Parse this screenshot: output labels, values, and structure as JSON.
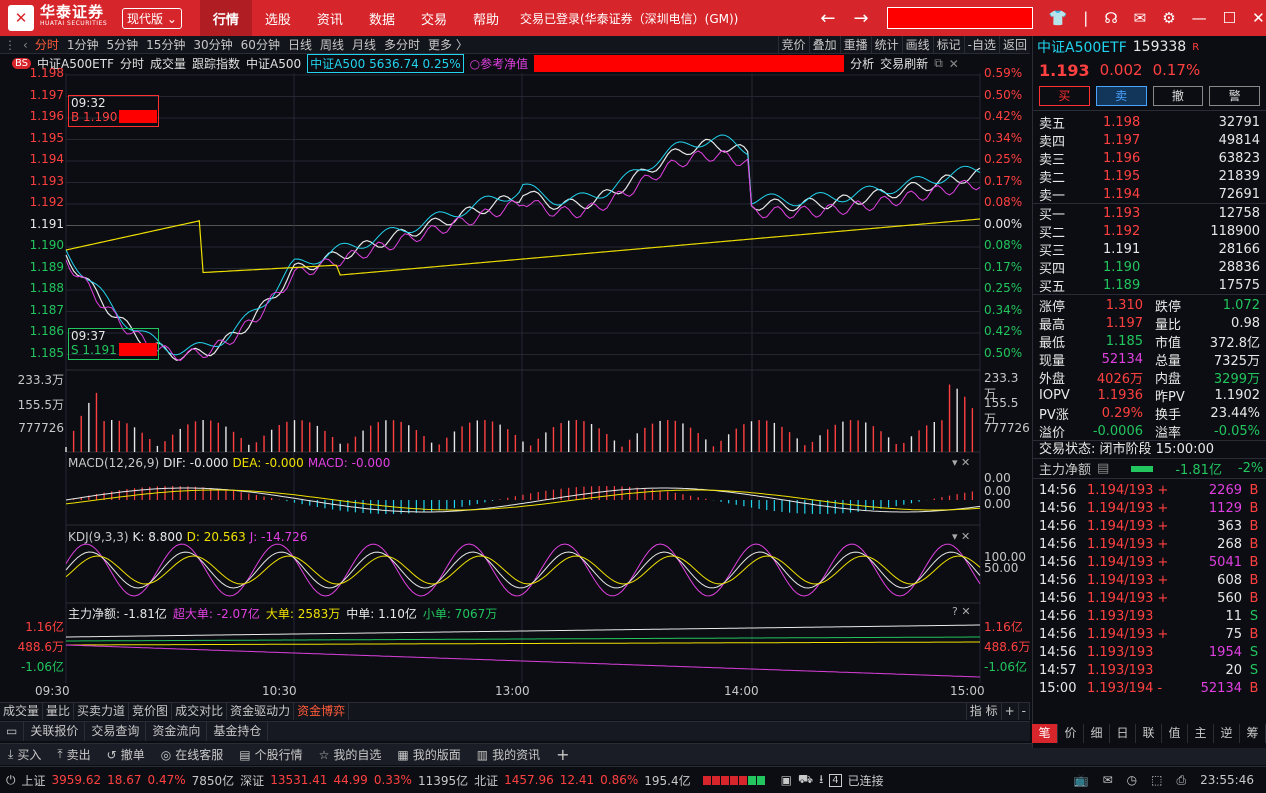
{
  "app": {
    "logo": "华泰证券",
    "logo_en": "HUATAI SECURITIES",
    "version": "现代版",
    "menu": [
      "行情",
      "选股",
      "资讯",
      "数据",
      "交易",
      "帮助"
    ],
    "login_status": "交易已登录(华泰证券（深圳电信）(GM))"
  },
  "periods": [
    "分时",
    "1分钟",
    "5分钟",
    "15分钟",
    "30分钟",
    "60分钟",
    "日线",
    "周线",
    "月线",
    "多分时",
    "更多"
  ],
  "toolbar_right": [
    "竞价",
    "叠加",
    "重播",
    "统计",
    "画线",
    "标记",
    "-自选",
    "返回"
  ],
  "info": {
    "bs": "BS",
    "name": "中证A500ETF",
    "items": [
      "分时",
      "成交量",
      "跟踪指数",
      "中证A500"
    ],
    "index_text": "中证A500 5636.74 0.25%",
    "ref": "参考净值",
    "analysis": "分析",
    "refresh": "交易刷新"
  },
  "axis": {
    "left": [
      "1.198",
      "1.197",
      "1.196",
      "1.195",
      "1.194",
      "1.193",
      "1.192",
      "1.191",
      "1.190",
      "1.189",
      "1.188",
      "1.187",
      "1.186",
      "1.185"
    ],
    "right": [
      "0.59%",
      "0.50%",
      "0.42%",
      "0.34%",
      "0.25%",
      "0.17%",
      "0.08%",
      "0.00%",
      "0.08%",
      "0.17%",
      "0.25%",
      "0.34%",
      "0.42%",
      "0.50%"
    ],
    "vol": [
      "233.3万",
      "155.5万",
      "777726"
    ],
    "time": [
      "09:30",
      "10:30",
      "13:00",
      "14:00",
      "15:00"
    ]
  },
  "markers": {
    "buy_time": "09:32",
    "buy": "B 1.190",
    "sell_time": "09:37",
    "sell": "S 1.191"
  },
  "macd": {
    "label": "MACD(12,26,9)",
    "dif": "DIF: -0.000",
    "dea": "DEA: -0.000",
    "macd": "MACD: -0.000",
    "axis": [
      "0.00",
      "0.00",
      "0.00"
    ]
  },
  "kdj": {
    "label": "KDJ(9,3,3)",
    "k": "K: 8.800",
    "d": "D: 20.563",
    "j": "J: -14.726",
    "axis": [
      "100.00",
      "50.00"
    ]
  },
  "flow": {
    "label": "主力净额: -1.81亿",
    "super": "超大单: -2.07亿",
    "big": "大单: 2583万",
    "mid": "中单: 1.10亿",
    "small": "小单: 7067万",
    "axis": [
      "1.16亿",
      "488.6万",
      "-1.06亿"
    ]
  },
  "bottom_tabs": [
    "成交量",
    "量比",
    "买卖力道",
    "竞价图",
    "成交对比",
    "资金驱动力",
    "资金博弈"
  ],
  "bottom_right": [
    "指",
    "标",
    "+",
    "-"
  ],
  "bar2": [
    "关联报价",
    "交易查询",
    "资金流向",
    "基金持仓"
  ],
  "bar3": [
    "买入",
    "卖出",
    "撤单",
    "在线客服",
    "个股行情",
    "我的自选",
    "我的版面",
    "我的资讯"
  ],
  "quote": {
    "name": "中证A500ETF",
    "code": "159338",
    "flag": "R",
    "price": "1.193",
    "chg": "0.002",
    "pct": "0.17%",
    "buttons": [
      "买",
      "卖",
      "撤",
      "警"
    ],
    "asks": [
      [
        "卖五",
        "1.198",
        "32791"
      ],
      [
        "卖四",
        "1.197",
        "49814"
      ],
      [
        "卖三",
        "1.196",
        "63823"
      ],
      [
        "卖二",
        "1.195",
        "21839"
      ],
      [
        "卖一",
        "1.194",
        "72691"
      ]
    ],
    "bids": [
      [
        "买一",
        "1.193",
        "12758"
      ],
      [
        "买二",
        "1.192",
        "118900"
      ],
      [
        "买三",
        "1.191",
        "28166"
      ],
      [
        "买四",
        "1.190",
        "28836"
      ],
      [
        "买五",
        "1.189",
        "17575"
      ]
    ],
    "stats": [
      [
        "涨停",
        "1.310",
        "跌停",
        "1.072"
      ],
      [
        "最高",
        "1.197",
        "量比",
        "0.98"
      ],
      [
        "最低",
        "1.185",
        "市值",
        "372.8亿"
      ],
      [
        "现量",
        "52134",
        "总量",
        "7325万"
      ],
      [
        "外盘",
        "4026万",
        "内盘",
        "3299万"
      ],
      [
        "IOPV",
        "1.1936",
        "昨PV",
        "1.1902"
      ],
      [
        "PV涨",
        "0.29%",
        "换手",
        "23.44%"
      ],
      [
        "溢价",
        "-0.0006",
        "溢率",
        "-0.05%"
      ]
    ],
    "trade_state": "交易状态: 闭市阶段 15:00:00",
    "flow_label": "主力净额",
    "flow_val": "-1.81亿",
    "flow_pct": "-2%",
    "ticks": [
      [
        "14:56",
        "1.194/193 +",
        "2269",
        "B"
      ],
      [
        "14:56",
        "1.194/193 +",
        "1129",
        "B"
      ],
      [
        "14:56",
        "1.194/193 +",
        "363",
        "B"
      ],
      [
        "14:56",
        "1.194/193 +",
        "268",
        "B"
      ],
      [
        "14:56",
        "1.194/193 +",
        "5041",
        "B"
      ],
      [
        "14:56",
        "1.194/193 +",
        "608",
        "B"
      ],
      [
        "14:56",
        "1.194/193 +",
        "560",
        "B"
      ],
      [
        "14:56",
        "1.193/193",
        "11",
        "S"
      ],
      [
        "14:56",
        "1.194/193 +",
        "75",
        "B"
      ],
      [
        "14:56",
        "1.193/193",
        "1954",
        "S"
      ],
      [
        "14:57",
        "1.193/193",
        "20",
        "S"
      ],
      [
        "15:00",
        "1.193/194 -",
        "52134",
        "B"
      ]
    ],
    "tabs": [
      "笔",
      "价",
      "细",
      "日",
      "联",
      "值",
      "主",
      "逆",
      "筹"
    ]
  },
  "status": {
    "sh": "上证",
    "sh_v": "3959.62",
    "sh_c": "18.67",
    "sh_p": "0.47%",
    "sh_a": "7850亿",
    "sz": "深证",
    "sz_v": "13531.41",
    "sz_c": "44.99",
    "sz_p": "0.33%",
    "sz_a": "11395亿",
    "bz": "北证",
    "bz_v": "1457.96",
    "bz_c": "12.41",
    "bz_p": "0.86%",
    "bz_a": "195.4亿",
    "conn": "已连接",
    "clock": "23:55:46"
  }
}
